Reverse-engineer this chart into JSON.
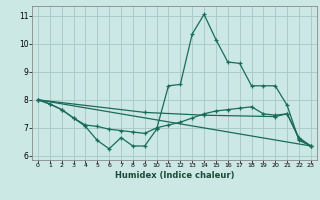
{
  "xlabel": "Humidex (Indice chaleur)",
  "bg_color": "#cce8e4",
  "grid_color": "#aaccc8",
  "line_color": "#1a6b5a",
  "xlim": [
    -0.5,
    23.5
  ],
  "ylim": [
    5.85,
    11.35
  ],
  "xticks": [
    0,
    1,
    2,
    3,
    4,
    5,
    6,
    7,
    8,
    9,
    10,
    11,
    12,
    13,
    14,
    15,
    16,
    17,
    18,
    19,
    20,
    21,
    22,
    23
  ],
  "yticks": [
    6,
    7,
    8,
    9,
    10,
    11
  ],
  "line1_x": [
    0,
    1,
    2,
    3,
    4,
    5,
    6,
    7,
    8,
    9,
    10,
    11,
    12,
    13,
    14,
    15,
    16,
    17,
    18,
    19,
    20,
    21,
    22,
    23
  ],
  "line1_y": [
    8.0,
    7.85,
    7.65,
    7.35,
    7.05,
    6.55,
    6.25,
    6.65,
    6.35,
    6.35,
    6.95,
    8.5,
    8.55,
    10.35,
    11.05,
    10.15,
    9.35,
    9.3,
    8.5,
    8.5,
    8.5,
    7.8,
    6.55,
    6.35
  ],
  "line2_x": [
    0,
    1,
    2,
    3,
    4,
    5,
    6,
    7,
    8,
    9,
    10,
    11,
    12,
    13,
    14,
    15,
    16,
    17,
    18,
    19,
    20,
    21,
    22,
    23
  ],
  "line2_y": [
    8.0,
    7.85,
    7.65,
    7.35,
    7.1,
    7.05,
    6.95,
    6.9,
    6.85,
    6.8,
    7.0,
    7.1,
    7.2,
    7.35,
    7.5,
    7.6,
    7.65,
    7.7,
    7.75,
    7.5,
    7.45,
    7.5,
    6.65,
    6.35
  ],
  "line3_x": [
    0,
    9,
    14,
    20,
    21,
    22,
    23
  ],
  "line3_y": [
    8.0,
    7.55,
    7.45,
    7.4,
    7.5,
    6.6,
    6.35
  ],
  "line4_x": [
    0,
    23
  ],
  "line4_y": [
    8.0,
    6.35
  ]
}
